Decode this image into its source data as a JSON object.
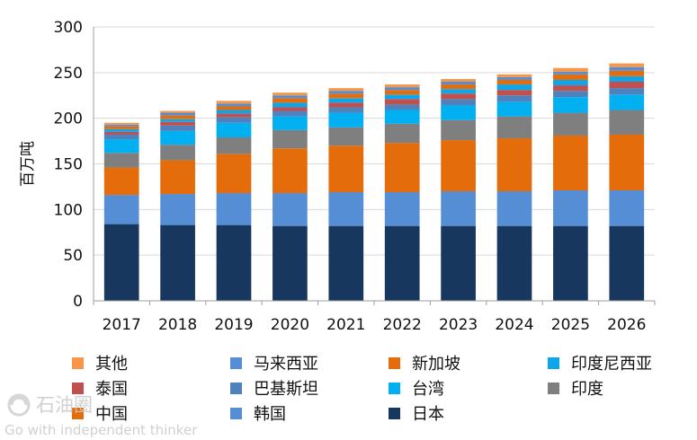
{
  "chart_data": {
    "type": "bar",
    "stacked": true,
    "ylabel": "百万吨",
    "ylim": [
      0,
      300
    ],
    "yticks": [
      0,
      50,
      100,
      150,
      200,
      250,
      300
    ],
    "grid": true,
    "legend_position": "bottom",
    "categories": [
      "2017",
      "2018",
      "2019",
      "2020",
      "2021",
      "2022",
      "2023",
      "2024",
      "2025",
      "2026"
    ],
    "series": [
      {
        "name": "日本",
        "color": "#17375e",
        "values": [
          84,
          83,
          83,
          82,
          82,
          82,
          82,
          82,
          82,
          82
        ]
      },
      {
        "name": "韩国",
        "color": "#558ed5",
        "values": [
          32,
          34,
          35,
          36,
          37,
          37,
          38,
          38,
          39,
          39
        ]
      },
      {
        "name": "中国",
        "color": "#e46c0a",
        "values": [
          30,
          37,
          43,
          49,
          51,
          54,
          56,
          58,
          60,
          61
        ]
      },
      {
        "name": "印度",
        "color": "#7f7f7f",
        "values": [
          16,
          17,
          18,
          20,
          20,
          21,
          22,
          24,
          25,
          27
        ]
      },
      {
        "name": "台湾",
        "color": "#00b0f0",
        "values": [
          15,
          15,
          16,
          15,
          16,
          15,
          16,
          16,
          17,
          17
        ]
      },
      {
        "name": "巴基斯坦",
        "color": "#4f81bd",
        "values": [
          5,
          6,
          6,
          6,
          6,
          6,
          7,
          7,
          7,
          7
        ]
      },
      {
        "name": "泰国",
        "color": "#c0504d",
        "values": [
          3,
          4,
          4,
          4,
          5,
          6,
          6,
          6,
          6,
          7
        ]
      },
      {
        "name": "印度尼西亚",
        "color": "#0ea5e9",
        "values": [
          3,
          3,
          4,
          5,
          5,
          5,
          5,
          6,
          6,
          6
        ]
      },
      {
        "name": "新加坡",
        "color": "#e46c0a",
        "values": [
          3,
          4,
          4,
          5,
          5,
          5,
          5,
          5,
          6,
          6
        ]
      },
      {
        "name": "马来西亚",
        "color": "#558ed5",
        "values": [
          2,
          3,
          3,
          3,
          3,
          3,
          3,
          3,
          3,
          4
        ]
      },
      {
        "name": "其他",
        "color": "#f79646",
        "values": [
          2,
          2,
          3,
          3,
          3,
          3,
          3,
          3,
          4,
          4
        ]
      }
    ],
    "legend": [
      {
        "name": "其他",
        "color": "#f79646"
      },
      {
        "name": "马来西亚",
        "color": "#558ed5"
      },
      {
        "name": "新加坡",
        "color": "#e46c0a"
      },
      {
        "name": "印度尼西亚",
        "color": "#0ea5e9"
      },
      {
        "name": "泰国",
        "color": "#c0504d"
      },
      {
        "name": "巴基斯坦",
        "color": "#4f81bd"
      },
      {
        "name": "台湾",
        "color": "#00b0f0"
      },
      {
        "name": "印度",
        "color": "#7f7f7f"
      },
      {
        "name": "中国",
        "color": "#e46c0a"
      },
      {
        "name": "韩国",
        "color": "#558ed5"
      },
      {
        "name": "日本",
        "color": "#17375e"
      }
    ]
  },
  "watermark": {
    "text": "石油圈",
    "subtitle": "Go with independent thinker"
  }
}
